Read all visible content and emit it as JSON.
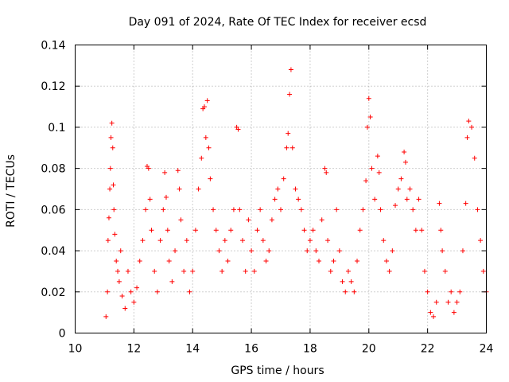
{
  "chart_data": {
    "type": "scatter",
    "title": "Day 091 of 2024, Rate Of TEC Index for receiver ecsd",
    "xlabel": "GPS time / hours",
    "ylabel": "ROTI / TECUs",
    "xlim": [
      10,
      24
    ],
    "ylim": [
      0,
      0.14
    ],
    "x_ticks": [
      10,
      12,
      14,
      16,
      18,
      20,
      22,
      24
    ],
    "y_ticks": [
      0,
      0.02,
      0.04,
      0.06,
      0.08,
      0.1,
      0.12,
      0.14
    ],
    "x_tick_labels": [
      "10",
      "12",
      "14",
      "16",
      "18",
      "20",
      "22",
      "24"
    ],
    "y_tick_labels": [
      "0",
      "0.02",
      "0.04",
      "0.06",
      "0.08",
      "0.1",
      "0.12",
      "0.14"
    ],
    "grid": true,
    "marker": "+",
    "color": "#ff0000",
    "series": [
      {
        "name": "ROTI",
        "points": [
          [
            11.05,
            0.008
          ],
          [
            11.1,
            0.02
          ],
          [
            11.12,
            0.045
          ],
          [
            11.15,
            0.056
          ],
          [
            11.18,
            0.07
          ],
          [
            11.2,
            0.08
          ],
          [
            11.22,
            0.095
          ],
          [
            11.25,
            0.102
          ],
          [
            11.28,
            0.09
          ],
          [
            11.3,
            0.072
          ],
          [
            11.32,
            0.06
          ],
          [
            11.35,
            0.048
          ],
          [
            11.4,
            0.035
          ],
          [
            11.45,
            0.03
          ],
          [
            11.5,
            0.025
          ],
          [
            11.55,
            0.04
          ],
          [
            11.6,
            0.018
          ],
          [
            11.7,
            0.012
          ],
          [
            11.8,
            0.03
          ],
          [
            11.9,
            0.02
          ],
          [
            12.0,
            0.015
          ],
          [
            12.1,
            0.022
          ],
          [
            12.2,
            0.035
          ],
          [
            12.3,
            0.045
          ],
          [
            12.4,
            0.06
          ],
          [
            12.45,
            0.081
          ],
          [
            12.5,
            0.08
          ],
          [
            12.55,
            0.065
          ],
          [
            12.6,
            0.05
          ],
          [
            12.7,
            0.03
          ],
          [
            12.8,
            0.02
          ],
          [
            12.9,
            0.045
          ],
          [
            13.0,
            0.06
          ],
          [
            13.05,
            0.078
          ],
          [
            13.1,
            0.066
          ],
          [
            13.15,
            0.05
          ],
          [
            13.2,
            0.035
          ],
          [
            13.3,
            0.025
          ],
          [
            13.4,
            0.04
          ],
          [
            13.5,
            0.079
          ],
          [
            13.55,
            0.07
          ],
          [
            13.6,
            0.055
          ],
          [
            13.7,
            0.03
          ],
          [
            13.8,
            0.045
          ],
          [
            13.9,
            0.02
          ],
          [
            14.0,
            0.03
          ],
          [
            14.1,
            0.05
          ],
          [
            14.2,
            0.07
          ],
          [
            14.3,
            0.085
          ],
          [
            14.35,
            0.109
          ],
          [
            14.4,
            0.11
          ],
          [
            14.45,
            0.095
          ],
          [
            14.5,
            0.113
          ],
          [
            14.55,
            0.09
          ],
          [
            14.6,
            0.075
          ],
          [
            14.7,
            0.06
          ],
          [
            14.8,
            0.05
          ],
          [
            14.9,
            0.04
          ],
          [
            15.0,
            0.03
          ],
          [
            15.1,
            0.045
          ],
          [
            15.2,
            0.035
          ],
          [
            15.3,
            0.05
          ],
          [
            15.4,
            0.06
          ],
          [
            15.5,
            0.1
          ],
          [
            15.55,
            0.099
          ],
          [
            15.6,
            0.06
          ],
          [
            15.7,
            0.045
          ],
          [
            15.8,
            0.03
          ],
          [
            15.9,
            0.055
          ],
          [
            16.0,
            0.04
          ],
          [
            16.1,
            0.03
          ],
          [
            16.2,
            0.05
          ],
          [
            16.3,
            0.06
          ],
          [
            16.4,
            0.045
          ],
          [
            16.5,
            0.035
          ],
          [
            16.6,
            0.04
          ],
          [
            16.7,
            0.055
          ],
          [
            16.8,
            0.065
          ],
          [
            16.9,
            0.07
          ],
          [
            17.0,
            0.06
          ],
          [
            17.1,
            0.075
          ],
          [
            17.2,
            0.09
          ],
          [
            17.25,
            0.097
          ],
          [
            17.3,
            0.116
          ],
          [
            17.35,
            0.128
          ],
          [
            17.4,
            0.09
          ],
          [
            17.5,
            0.07
          ],
          [
            17.6,
            0.065
          ],
          [
            17.7,
            0.06
          ],
          [
            17.8,
            0.05
          ],
          [
            17.9,
            0.04
          ],
          [
            18.0,
            0.045
          ],
          [
            18.1,
            0.05
          ],
          [
            18.2,
            0.04
          ],
          [
            18.3,
            0.035
          ],
          [
            18.4,
            0.055
          ],
          [
            18.5,
            0.08
          ],
          [
            18.55,
            0.078
          ],
          [
            18.6,
            0.045
          ],
          [
            18.7,
            0.03
          ],
          [
            18.8,
            0.035
          ],
          [
            18.9,
            0.06
          ],
          [
            19.0,
            0.04
          ],
          [
            19.1,
            0.025
          ],
          [
            19.2,
            0.02
          ],
          [
            19.3,
            0.03
          ],
          [
            19.4,
            0.025
          ],
          [
            19.5,
            0.02
          ],
          [
            19.6,
            0.035
          ],
          [
            19.7,
            0.05
          ],
          [
            19.8,
            0.06
          ],
          [
            19.9,
            0.074
          ],
          [
            19.95,
            0.1
          ],
          [
            20.0,
            0.114
          ],
          [
            20.05,
            0.105
          ],
          [
            20.1,
            0.08
          ],
          [
            20.2,
            0.065
          ],
          [
            20.3,
            0.086
          ],
          [
            20.35,
            0.078
          ],
          [
            20.4,
            0.06
          ],
          [
            20.5,
            0.045
          ],
          [
            20.6,
            0.035
          ],
          [
            20.7,
            0.03
          ],
          [
            20.8,
            0.04
          ],
          [
            20.9,
            0.062
          ],
          [
            21.0,
            0.07
          ],
          [
            21.1,
            0.075
          ],
          [
            21.2,
            0.088
          ],
          [
            21.25,
            0.083
          ],
          [
            21.3,
            0.065
          ],
          [
            21.4,
            0.07
          ],
          [
            21.5,
            0.06
          ],
          [
            21.6,
            0.05
          ],
          [
            21.7,
            0.065
          ],
          [
            21.8,
            0.05
          ],
          [
            21.9,
            0.03
          ],
          [
            22.0,
            0.02
          ],
          [
            22.1,
            0.01
          ],
          [
            22.2,
            0.008
          ],
          [
            22.3,
            0.015
          ],
          [
            22.4,
            0.063
          ],
          [
            22.45,
            0.05
          ],
          [
            22.5,
            0.04
          ],
          [
            22.6,
            0.03
          ],
          [
            22.7,
            0.015
          ],
          [
            22.8,
            0.02
          ],
          [
            22.9,
            0.01
          ],
          [
            23.0,
            0.015
          ],
          [
            23.1,
            0.02
          ],
          [
            23.2,
            0.04
          ],
          [
            23.3,
            0.063
          ],
          [
            23.35,
            0.095
          ],
          [
            23.4,
            0.103
          ],
          [
            23.5,
            0.1
          ],
          [
            23.6,
            0.085
          ],
          [
            23.7,
            0.06
          ],
          [
            23.8,
            0.045
          ],
          [
            23.9,
            0.03
          ],
          [
            24.0,
            0.02
          ]
        ]
      }
    ]
  }
}
